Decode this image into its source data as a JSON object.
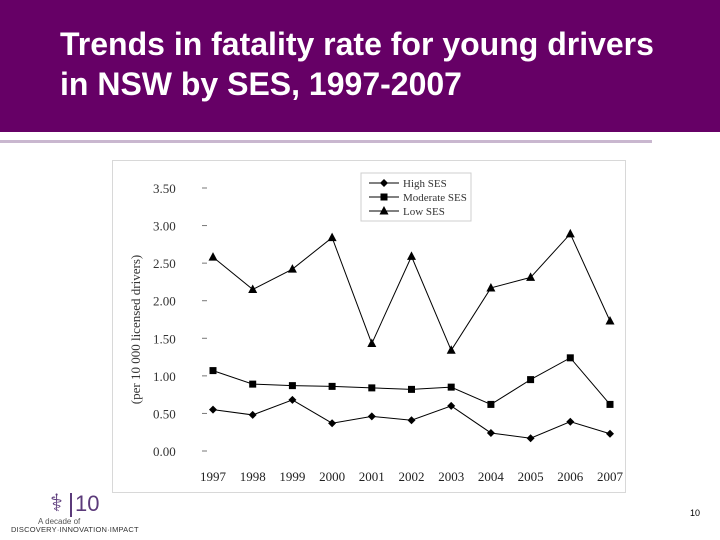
{
  "slide": {
    "title": "Trends in fatality rate for young drivers in NSW by SES, 1997-2007",
    "page_number": "10"
  },
  "logo": {
    "mark": "⚕",
    "number": "10",
    "line1": "A decade of",
    "line2": "DISCOVERY·INNOVATION·IMPACT"
  },
  "colors": {
    "title_bar": "#660066",
    "title_text": "#ffffff",
    "series": "#000000"
  },
  "chart_data": {
    "type": "line",
    "title": "",
    "xlabel": "",
    "ylabel": "(per 10 000 licensed drivers)",
    "x": [
      "1997",
      "1998",
      "1999",
      "2000",
      "2001",
      "2002",
      "2003",
      "2004",
      "2005",
      "2006",
      "2007"
    ],
    "ylim": [
      0,
      3.5
    ],
    "yticks": [
      "0.00",
      "0.50",
      "1.00",
      "1.50",
      "2.00",
      "2.50",
      "3.00",
      "3.50"
    ],
    "legend_position": "top-center",
    "grid": false,
    "series": [
      {
        "name": "High SES",
        "marker": "diamond",
        "values": [
          0.55,
          0.48,
          0.68,
          0.37,
          0.46,
          0.41,
          0.6,
          0.24,
          0.17,
          0.39,
          0.23
        ]
      },
      {
        "name": "Moderate SES",
        "marker": "square",
        "values": [
          1.07,
          0.89,
          0.87,
          0.86,
          0.84,
          0.82,
          0.85,
          0.62,
          0.95,
          1.24,
          0.62
        ]
      },
      {
        "name": "Low SES",
        "marker": "triangle",
        "values": [
          2.58,
          2.15,
          2.42,
          2.84,
          1.43,
          2.59,
          1.34,
          2.17,
          2.31,
          2.89,
          1.73
        ]
      }
    ]
  }
}
